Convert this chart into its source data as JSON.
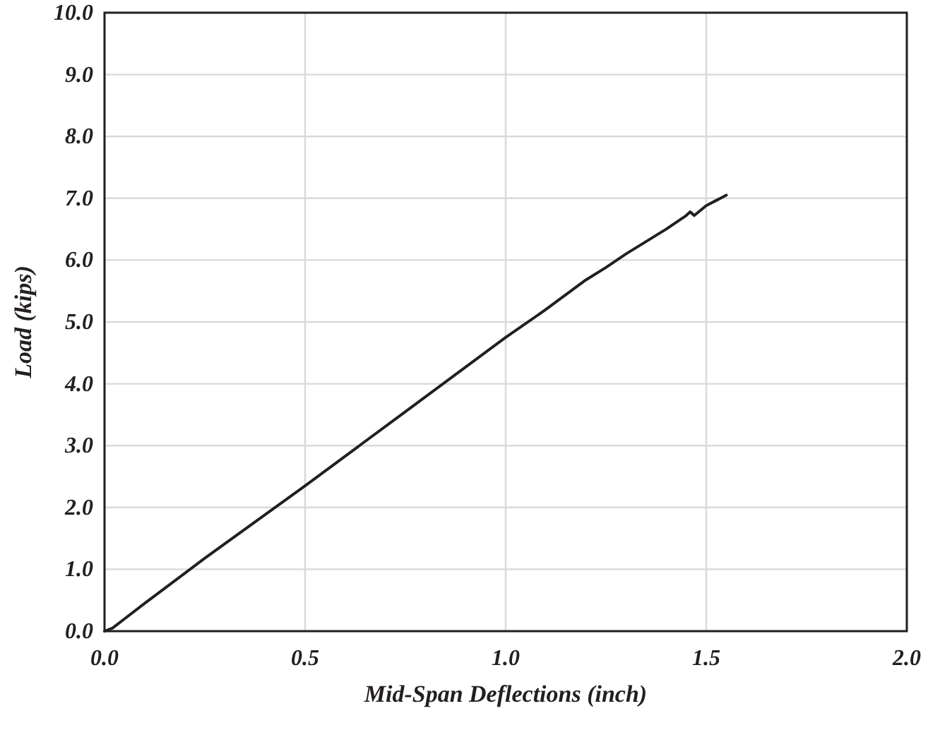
{
  "chart_data": {
    "type": "line",
    "xlabel": "Mid-Span Deflections (inch)",
    "ylabel": "Load (kips)",
    "series": [
      {
        "color": "#231f20",
        "x": [
          0,
          0.02,
          0.05,
          0.1,
          0.25,
          0.5,
          0.75,
          1.0,
          1.1,
          1.2,
          1.25,
          1.3,
          1.4,
          1.45,
          1.46,
          1.47,
          1.5,
          1.55
        ],
        "values": [
          0,
          0.05,
          0.2,
          0.45,
          1.18,
          2.35,
          3.55,
          4.75,
          5.2,
          5.68,
          5.88,
          6.1,
          6.5,
          6.72,
          6.78,
          6.72,
          6.88,
          7.05
        ]
      }
    ],
    "xlim": [
      0,
      2
    ],
    "xticks": [
      {
        "value": 0,
        "label": "0.0"
      },
      0.5,
      {
        "value": 1,
        "label": "1.0"
      },
      1.5,
      {
        "value": 2,
        "label": "2.0"
      }
    ],
    "ylim": [
      0,
      10
    ],
    "yticks": [
      {
        "value": 0,
        "label": "0.0"
      },
      {
        "value": 1,
        "label": "1.0"
      },
      {
        "value": 2,
        "label": "2.0"
      },
      {
        "value": 3,
        "label": "3.0"
      },
      {
        "value": 4,
        "label": "4.0"
      },
      {
        "value": 5,
        "label": "5.0"
      },
      {
        "value": 6,
        "label": "6.0"
      },
      {
        "value": 7,
        "label": "7.0"
      },
      {
        "value": 8,
        "label": "8.0"
      },
      {
        "value": 9,
        "label": "9.0"
      },
      {
        "value": 10,
        "label": "10.0"
      }
    ],
    "grid": true,
    "marker": "none",
    "line_style": "solid"
  }
}
